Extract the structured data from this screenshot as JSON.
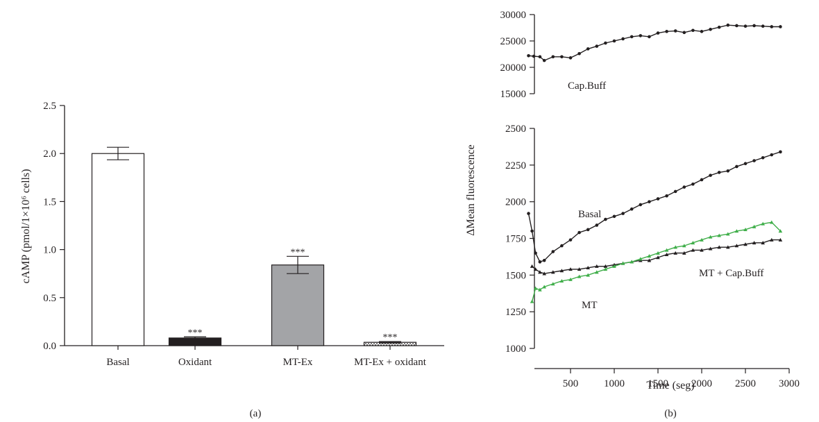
{
  "chart_data": [
    {
      "panel": "(a)",
      "type": "bar",
      "ylabel": "cAMP (pmol/1×10⁶ cells)",
      "ylim": [
        0,
        2.5
      ],
      "yticks": [
        "0.0",
        "0.5",
        "1.0",
        "1.5",
        "2.0",
        "2.5"
      ],
      "categories": [
        "Basal",
        "Oxidant",
        "MT-Ex",
        "MT-Ex + oxidant"
      ],
      "values": [
        2.0,
        0.08,
        0.84,
        0.035
      ],
      "errors": [
        0.065,
        0.012,
        0.09,
        0.008
      ],
      "annotations": [
        "",
        "***",
        "***",
        "***"
      ],
      "colors": [
        "#ffffff",
        "#231f20",
        "#a3a4a7",
        "pattern"
      ]
    },
    {
      "panel": "(b)",
      "type": "scatter",
      "xlabel": "Time (seg)",
      "ylabel": "ΔMean fluorescence",
      "xlim": [
        0,
        3000
      ],
      "xticks": [
        "500",
        "1000",
        "1500",
        "2000",
        "2500",
        "3000"
      ],
      "top_ylim": [
        15000,
        30000
      ],
      "top_yticks": [
        "15000",
        "20000",
        "25000",
        "30000"
      ],
      "bottom_ylim": [
        1000,
        2500
      ],
      "bottom_yticks": [
        "1000",
        "1250",
        "1500",
        "1750",
        "2000",
        "2250",
        "2500"
      ],
      "series": [
        {
          "name": "Cap.Buff",
          "panel": "top",
          "color": "#231f20",
          "marker": "circle",
          "x": [
            20,
            80,
            150,
            200,
            300,
            400,
            500,
            600,
            700,
            800,
            900,
            1000,
            1100,
            1200,
            1300,
            1400,
            1500,
            1600,
            1700,
            1800,
            1900,
            2000,
            2100,
            2200,
            2300,
            2400,
            2500,
            2600,
            2700,
            2800,
            2900
          ],
          "y": [
            22200,
            22100,
            22000,
            21300,
            22000,
            22000,
            21800,
            22600,
            23500,
            24000,
            24600,
            25000,
            25400,
            25800,
            26000,
            25800,
            26500,
            26800,
            26900,
            26600,
            27000,
            26800,
            27200,
            27600,
            28000,
            27900,
            27800,
            27900,
            27800,
            27700,
            27700
          ]
        },
        {
          "name": "Basal",
          "panel": "bottom",
          "color": "#231f20",
          "marker": "circle",
          "x": [
            20,
            60,
            100,
            150,
            200,
            300,
            400,
            500,
            600,
            700,
            800,
            900,
            1000,
            1100,
            1200,
            1300,
            1400,
            1500,
            1600,
            1700,
            1800,
            1900,
            2000,
            2100,
            2200,
            2300,
            2400,
            2500,
            2600,
            2700,
            2800,
            2900
          ],
          "y": [
            1920,
            1800,
            1650,
            1590,
            1600,
            1660,
            1700,
            1740,
            1790,
            1810,
            1840,
            1880,
            1900,
            1920,
            1950,
            1980,
            2000,
            2020,
            2040,
            2070,
            2100,
            2120,
            2150,
            2180,
            2200,
            2210,
            2240,
            2260,
            2280,
            2300,
            2320,
            2340
          ]
        },
        {
          "name": "MT + Cap.Buff",
          "panel": "bottom",
          "color": "#231f20",
          "marker": "triangle",
          "x": [
            60,
            100,
            150,
            200,
            300,
            400,
            500,
            600,
            700,
            800,
            900,
            1000,
            1100,
            1200,
            1300,
            1400,
            1500,
            1600,
            1700,
            1800,
            1900,
            2000,
            2100,
            2200,
            2300,
            2400,
            2500,
            2600,
            2700,
            2800,
            2900
          ],
          "y": [
            1560,
            1540,
            1520,
            1510,
            1520,
            1530,
            1540,
            1540,
            1550,
            1560,
            1560,
            1570,
            1580,
            1590,
            1600,
            1600,
            1620,
            1640,
            1650,
            1650,
            1670,
            1670,
            1680,
            1690,
            1690,
            1700,
            1710,
            1720,
            1720,
            1740,
            1740
          ]
        },
        {
          "name": "MT",
          "panel": "bottom",
          "color": "#3fae49",
          "marker": "triangle",
          "x": [
            60,
            100,
            150,
            200,
            300,
            400,
            500,
            600,
            700,
            800,
            900,
            1000,
            1100,
            1200,
            1300,
            1400,
            1500,
            1600,
            1700,
            1800,
            1900,
            2000,
            2100,
            2200,
            2300,
            2400,
            2500,
            2600,
            2700,
            2800,
            2900
          ],
          "y": [
            1320,
            1410,
            1400,
            1420,
            1440,
            1460,
            1470,
            1490,
            1500,
            1520,
            1540,
            1560,
            1580,
            1590,
            1610,
            1630,
            1650,
            1670,
            1690,
            1700,
            1720,
            1740,
            1760,
            1770,
            1780,
            1800,
            1810,
            1830,
            1850,
            1860,
            1800
          ]
        }
      ]
    }
  ]
}
